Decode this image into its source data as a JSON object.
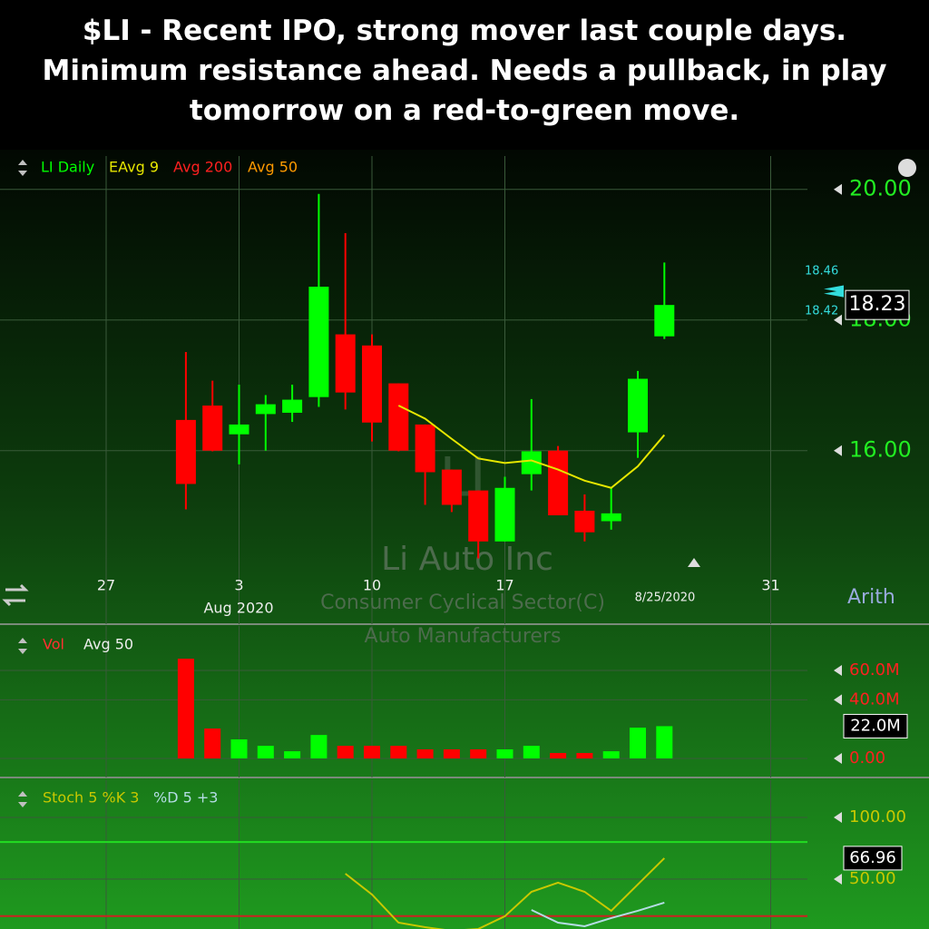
{
  "caption_lines": [
    "$LI - Recent IPO, strong mover last couple days.",
    "Minimum resistance ahead. Needs a pullback, in play",
    "tomorrow on a red-to-green move."
  ],
  "chart_data": [
    {
      "type": "candlestick",
      "title": "LI Daily",
      "categories": [
        "27",
        null,
        null,
        null,
        null,
        "3",
        null,
        null,
        null,
        null,
        "10",
        null,
        null,
        null,
        null,
        "17",
        null,
        null,
        null,
        null,
        null,
        null,
        null,
        null,
        null,
        "31"
      ],
      "x_sublabel": "Aug 2020",
      "cursor_label": "8/25/2020",
      "open": [
        null,
        null,
        null,
        16.47,
        16.69,
        16.25,
        16.56,
        16.58,
        16.82,
        17.78,
        17.61,
        17.03,
        16.4,
        15.71,
        15.39,
        14.61,
        15.64,
        16.0,
        15.08,
        14.92,
        16.28,
        17.75,
        null,
        null,
        null,
        null
      ],
      "high": [
        null,
        null,
        null,
        17.51,
        17.07,
        17.01,
        16.85,
        17.01,
        19.93,
        19.33,
        17.78,
        17.03,
        16.4,
        15.71,
        15.39,
        15.6,
        16.79,
        16.07,
        15.33,
        15.43,
        17.22,
        18.88,
        null,
        null,
        null,
        null
      ],
      "low": [
        null,
        null,
        null,
        15.1,
        15.99,
        15.79,
        16.0,
        16.44,
        16.67,
        16.63,
        16.14,
        15.99,
        15.17,
        15.06,
        14.35,
        14.61,
        15.39,
        15.01,
        14.61,
        14.79,
        15.89,
        17.71,
        null,
        null,
        null,
        null
      ],
      "close": [
        null,
        null,
        null,
        15.49,
        16.0,
        16.4,
        16.71,
        16.78,
        18.51,
        16.89,
        16.43,
        16.0,
        15.67,
        15.17,
        14.61,
        15.43,
        15.99,
        15.01,
        14.75,
        15.04,
        17.1,
        18.23,
        null,
        null,
        null,
        null
      ],
      "up_color": "#00ff00",
      "down_color": "#ff0000",
      "overlays": [
        {
          "name": "EAvg 9",
          "color": "#e6e600",
          "values": [
            null,
            null,
            null,
            null,
            null,
            null,
            null,
            null,
            null,
            null,
            null,
            16.69,
            16.49,
            16.18,
            15.88,
            15.81,
            15.85,
            15.71,
            15.54,
            15.43,
            15.76,
            16.24,
            null,
            null,
            null,
            null
          ]
        }
      ],
      "legend_extra": [
        {
          "name": "Avg 200",
          "color": "#ff2020"
        },
        {
          "name": "Avg 50",
          "color": "#ff9a00"
        }
      ],
      "watermark": {
        "symbol": "LI",
        "name": "Li Auto Inc",
        "sector": "Consumer Cyclical Sector(C)",
        "industry": "Auto Manufacturers"
      },
      "ask": 18.46,
      "bid": 18.42,
      "scale_label": "Arith",
      "ylim": [
        14.01,
        20.51
      ],
      "yticks": [
        {
          "value": 20,
          "label": "20.00"
        },
        {
          "value": 18,
          "label": "18.00"
        },
        {
          "value": 16,
          "label": "16.00"
        }
      ],
      "grid": true
    },
    {
      "type": "bar",
      "title": "Vol",
      "legend": [
        "Avg 50"
      ],
      "values": [
        null,
        null,
        null,
        68.0,
        20.4,
        13.0,
        8.6,
        4.9,
        16.0,
        8.6,
        8.6,
        8.6,
        6.2,
        6.2,
        6.2,
        6.2,
        8.6,
        3.7,
        3.7,
        4.9,
        21.0,
        22.0,
        null,
        null,
        null,
        null
      ],
      "value_labels": [
        null,
        null,
        null,
        null,
        null,
        null,
        null,
        null,
        null,
        null,
        null,
        null,
        null,
        null,
        null,
        null,
        null,
        null,
        null,
        null,
        null,
        "22.0M",
        null,
        null,
        null,
        null
      ],
      "ylim": [
        -11.75,
        90.3
      ],
      "yticks": [
        {
          "value": 60,
          "label": "60.0M"
        },
        {
          "value": 40,
          "label": "40.0M"
        },
        {
          "value": 0,
          "label": "0.00"
        }
      ],
      "grid": true
    },
    {
      "type": "line",
      "series": [
        {
          "name": "Stoch 5 %K 3",
          "color": "#c8c800",
          "values": [
            null,
            null,
            null,
            null,
            null,
            null,
            null,
            null,
            null,
            54.4,
            37.5,
            14.7,
            11.0,
            8.1,
            9.6,
            19.9,
            39.7,
            47.1,
            39.7,
            24.3,
            45.6,
            66.96,
            null,
            null,
            null,
            null
          ]
        },
        {
          "name": "%D 5 +3",
          "color": "#b4dce4",
          "values": [
            null,
            null,
            null,
            null,
            null,
            null,
            null,
            null,
            null,
            null,
            null,
            null,
            null,
            null,
            null,
            null,
            25.0,
            14.7,
            11.8,
            18.4,
            24.3,
            30.9,
            null,
            null,
            null,
            null
          ]
        }
      ],
      "hlines": [
        {
          "value": 80,
          "color": "#22dd22"
        },
        {
          "value": 20,
          "color": "#cc2222"
        }
      ],
      "ylim": [
        9.56,
        130.1
      ],
      "yticks": [
        {
          "value": 100,
          "label": "100.00"
        },
        {
          "value": 50,
          "label": "50.00"
        }
      ],
      "grid": true
    }
  ]
}
